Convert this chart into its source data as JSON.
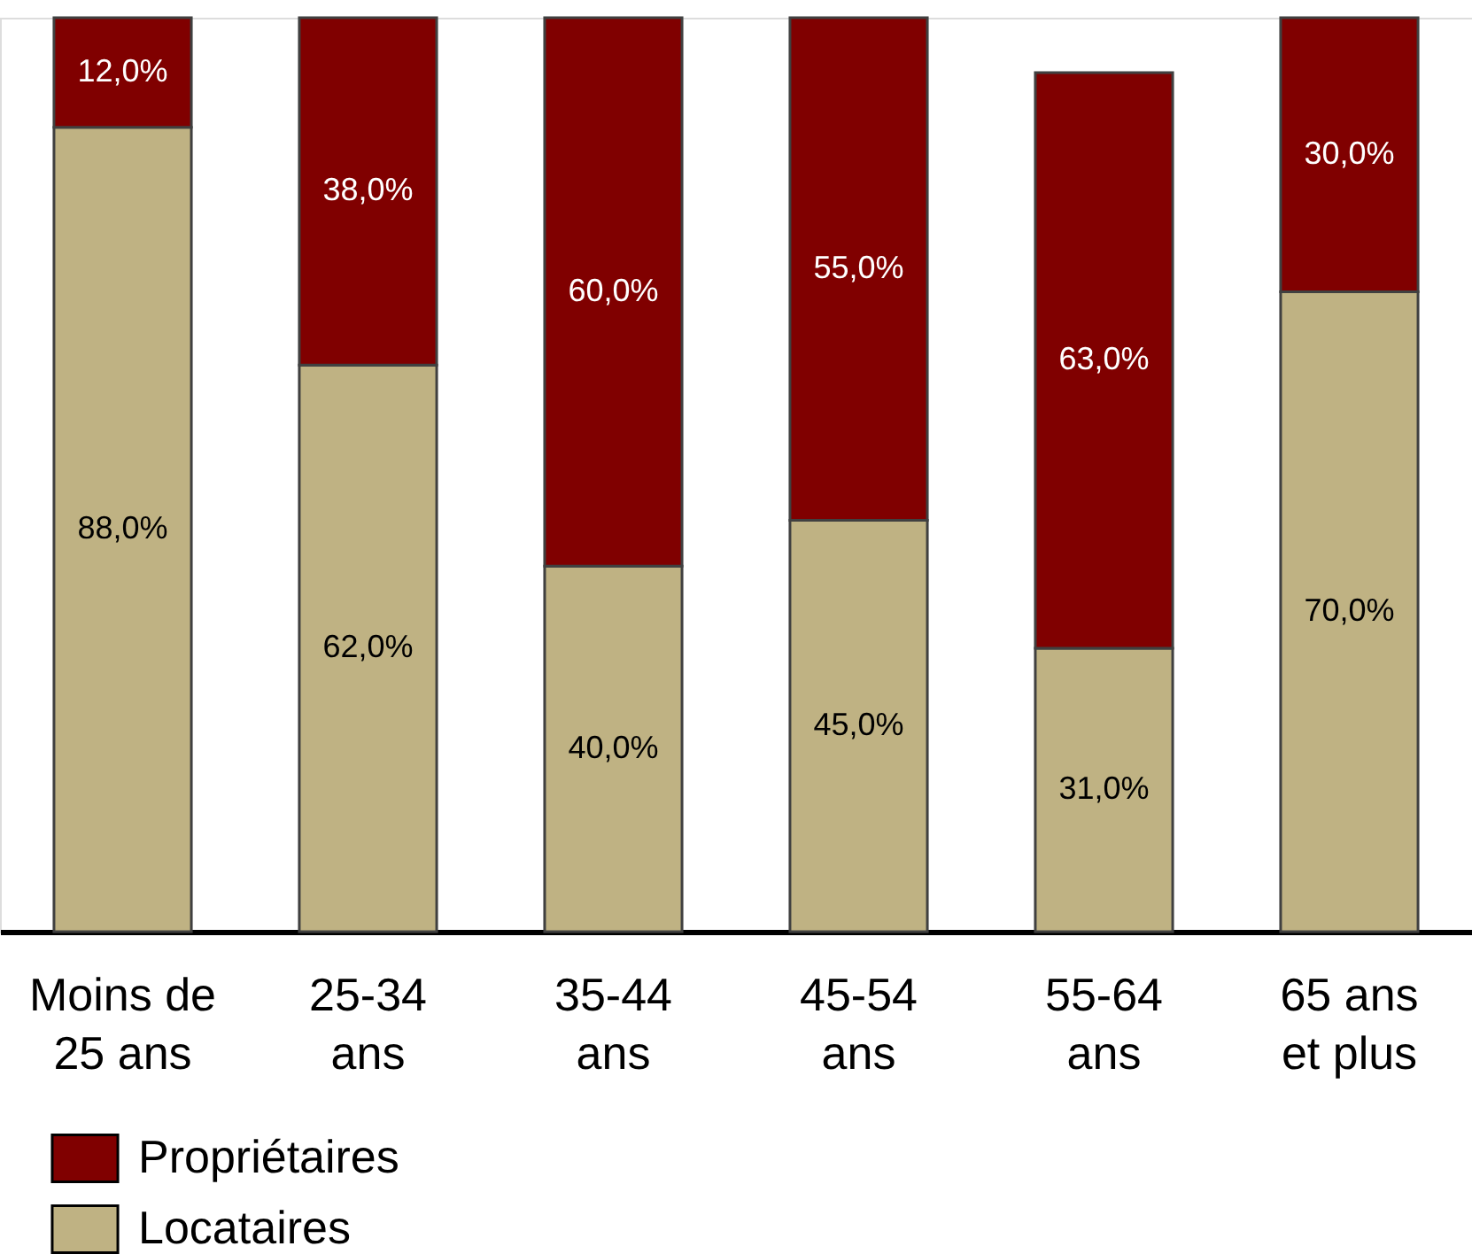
{
  "chart_data": {
    "type": "bar",
    "stacked": true,
    "legend": "bottom left",
    "categories": [
      "Moins de 25 ans",
      "25-34 ans",
      "35-44 ans",
      "45-54 ans",
      "55-64 ans",
      "65 ans et plus"
    ],
    "series": [
      {
        "name": "Locataires",
        "color": "#bfb283",
        "values": [
          88,
          62,
          40,
          45,
          31,
          70
        ],
        "value_labels": [
          "88,0%",
          "62,0%",
          "40,0%",
          "45,0%",
          "31,0%",
          "70,0%"
        ]
      },
      {
        "name": "Propriétaires",
        "color": "#800000",
        "values": [
          12,
          38,
          60,
          55,
          63,
          30
        ],
        "value_labels": [
          "12,0%",
          "38,0%",
          "60,0%",
          "55,0%",
          "63,0%",
          "30,0%"
        ]
      }
    ]
  }
}
